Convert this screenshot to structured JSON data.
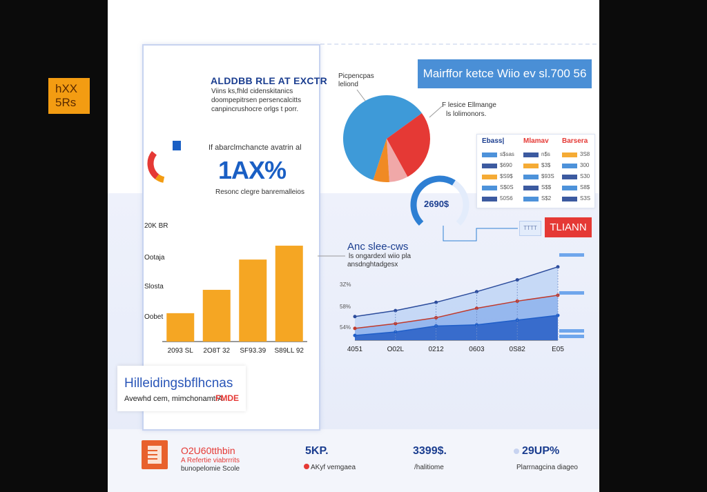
{
  "header": {
    "badge": "hXX\n5Rs",
    "title": "ALDDBB RLE AT EXCTR",
    "desc_lines": [
      "Viins ks,fhld cidenskitanics",
      "doompepitrsen persencalcitts",
      "canpincrushocre orlgs t porr."
    ],
    "top_right_title": "Mairffor ketce Wiio ev sl.700 56"
  },
  "gauge": {
    "caption": "If abarclmchancte avatrin al",
    "big_value": "1AX%",
    "sub": "Resonc clegre banremalleios",
    "fraction": 0.7,
    "colors": {
      "fill": "#e53935",
      "accent": "#f39c12",
      "track": "#ffffff"
    }
  },
  "pie_labels": {
    "left_1": "Picpencpas",
    "left_2": "leliond",
    "right_1": "F lesice Ellmange",
    "right_2": "ls lolimonors."
  },
  "ring": {
    "value": "2690$",
    "fraction": 0.62,
    "colors": {
      "fill": "#2e7fd3",
      "track": "#e3ecfb"
    }
  },
  "table": {
    "headers": [
      "Ebass|",
      "Mlamav",
      "Barsera"
    ],
    "header_colors": [
      "#1a3d8f",
      "#e53935",
      "#e53935"
    ],
    "rows": [
      [
        "s$sas",
        "n$s",
        "3S8"
      ],
      [
        "$690",
        "$3$",
        "300"
      ],
      [
        "$S9$",
        "$93S",
        "S30"
      ],
      [
        "S$0S",
        "S$$",
        "S8$"
      ],
      [
        "50S6",
        "S$2",
        "S3S"
      ]
    ]
  },
  "flag": {
    "label": "TLIANN",
    "chip": "TTTT"
  },
  "line_chart_labels": {
    "title": "Anc slee-cws",
    "sub_1": "ls ongardexl wiio pla",
    "sub_2": "ansdnghtadgesx"
  },
  "left_panel": {
    "info_title": "Hilleidingsbflhcnas",
    "info_sub": "Avewhd cem, mimchonamtrA",
    "info_tag": "FMDE"
  },
  "footer": {
    "item1_title": "O2U60tthbin",
    "item1_line1": "A Refertie viabrrrits",
    "item1_line2": "bunopelomie Scole",
    "item2_value": "5KP.",
    "item2_sub": "AKyf vemgaea",
    "item3_value": "3399$.",
    "item3_sub": "/halitiome",
    "item4_value": "29UP%",
    "item4_sub": "Plarrnagcina diageo"
  },
  "chart_data": [
    {
      "type": "bar",
      "categories": [
        "2093 SL",
        "2O8T 32",
        "SF93.39",
        "S89LL 92"
      ],
      "values": [
        45,
        82,
        130,
        152
      ],
      "ytick_labels": [
        "Oobet",
        "Slosta",
        "Ootaja",
        "20K BR"
      ],
      "ylim": [
        0,
        175
      ],
      "color": "#f5a623"
    },
    {
      "type": "pie",
      "values": [
        60,
        27,
        7,
        6
      ],
      "colors": [
        "#3e9ad8",
        "#e53935",
        "#f0a8a8",
        "#f08a24"
      ]
    },
    {
      "type": "line",
      "xtick_labels": [
        "4051",
        "O02L",
        "0212",
        "0603",
        "0S82",
        "E05"
      ],
      "ytick_labels": [
        "3Z%",
        "58%",
        "54%"
      ],
      "x": [
        0,
        1,
        2,
        3,
        4,
        5
      ],
      "series": [
        {
          "values": [
            2.0,
            2.5,
            3.2,
            4.1,
            5.1,
            6.2
          ],
          "color": "#2b4b9b"
        },
        {
          "values": [
            1.0,
            1.4,
            1.9,
            2.7,
            3.3,
            3.8
          ],
          "color": "#c0392b"
        },
        {
          "values": [
            0.4,
            0.7,
            1.2,
            1.3,
            1.7,
            2.1
          ],
          "color": "#1f5ec8"
        }
      ],
      "ylim": [
        0,
        7
      ],
      "fill_colors": [
        "#a8c6f3",
        "#6f9de8",
        "#2e64c8"
      ]
    }
  ]
}
